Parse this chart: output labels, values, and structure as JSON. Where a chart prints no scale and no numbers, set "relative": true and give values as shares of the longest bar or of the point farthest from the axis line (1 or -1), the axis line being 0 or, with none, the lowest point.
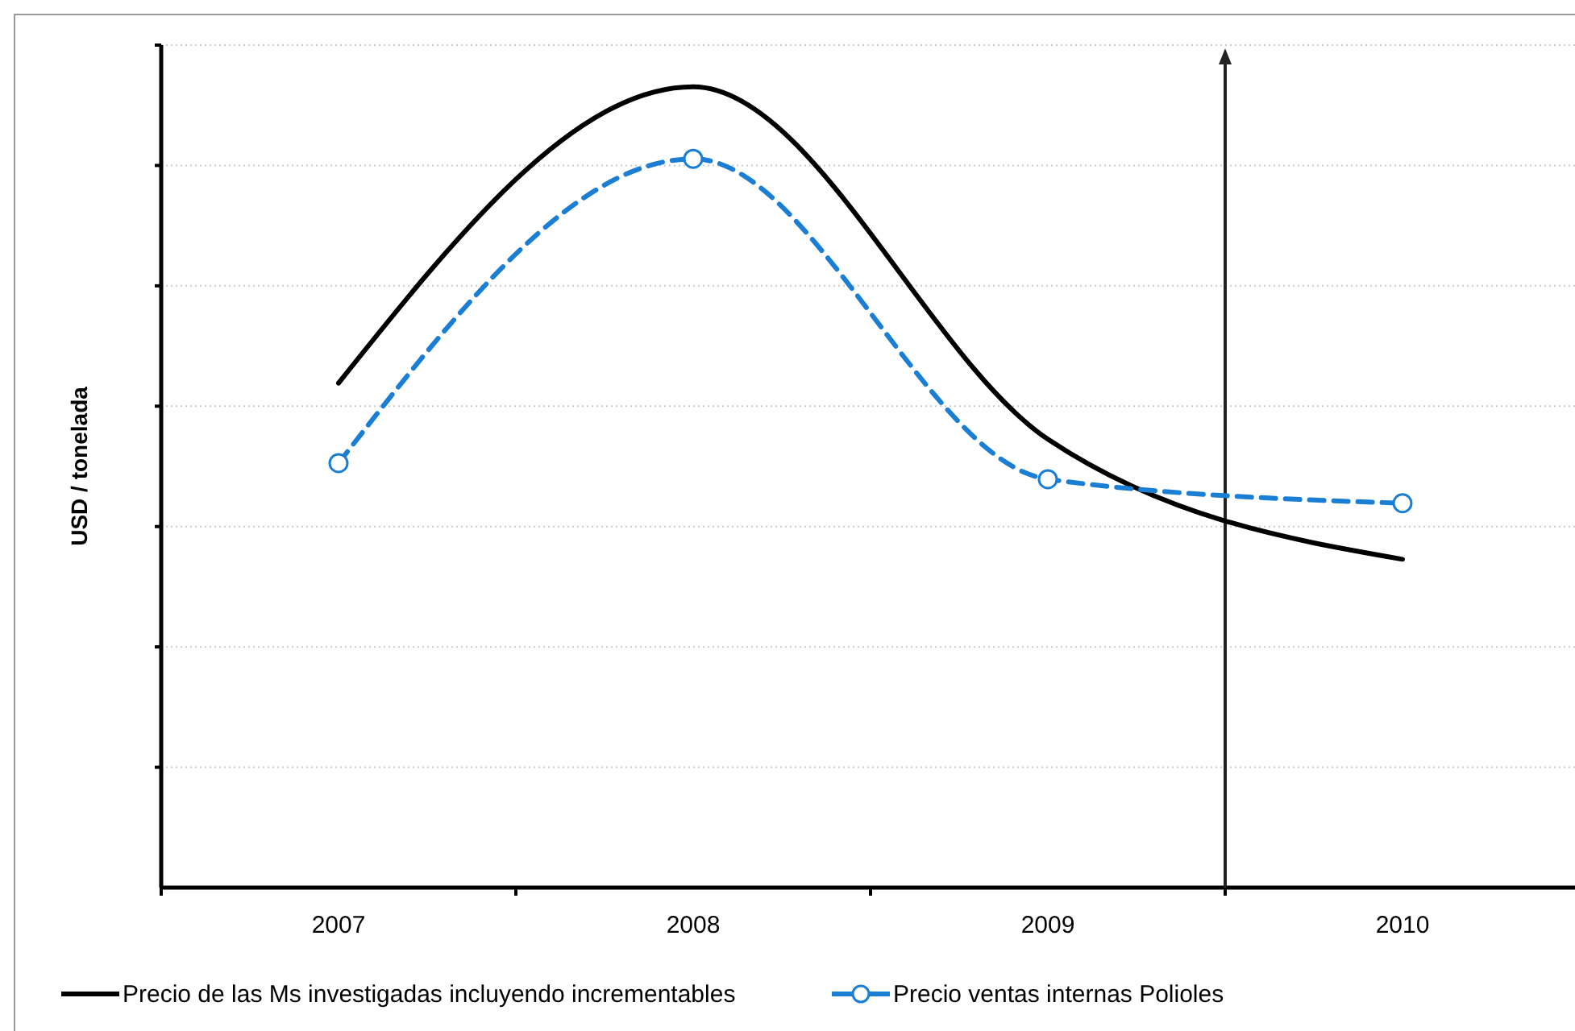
{
  "chart_data": {
    "type": "line",
    "relative": true,
    "ylabel": "USD / tonelada",
    "categories": [
      "2007",
      "2008",
      "2009",
      "2010"
    ],
    "grid": "y",
    "legend": "bottom",
    "series": [
      {
        "name": "Precio de las Ms investigadas incluyendo incrementables",
        "color": "#000000",
        "values": [
          0.63,
          1,
          0.56,
          0.41
        ],
        "marker": "none",
        "line_style": "solid"
      },
      {
        "name": "Precio ventas internas Polioles",
        "color": "#1a7fd4",
        "values": [
          0.53,
          0.91,
          0.51,
          0.48
        ],
        "marker": "circle",
        "line_style": "dashed"
      }
    ]
  }
}
